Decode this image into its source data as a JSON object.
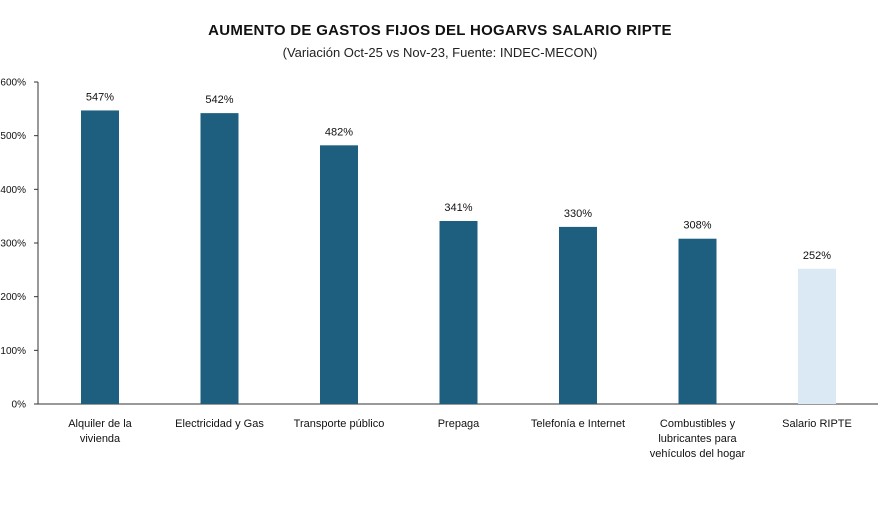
{
  "chart_data": {
    "type": "bar",
    "title": "AUMENTO DE GASTOS FIJOS DEL HOGARVS SALARIO RIPTE",
    "subtitle": "(Variación Oct-25 vs Nov-23, Fuente: INDEC-MECON)",
    "categories": [
      [
        "Alquiler de la",
        "vivienda"
      ],
      [
        "Electricidad y Gas"
      ],
      [
        "Transporte público"
      ],
      [
        "Prepaga"
      ],
      [
        "Telefonía e Internet"
      ],
      [
        "Combustibles y",
        "lubricantes para",
        "vehículos del hogar"
      ],
      [
        "Salario RIPTE"
      ]
    ],
    "values": [
      547,
      542,
      482,
      341,
      330,
      308,
      252
    ],
    "data_labels": [
      "547%",
      "542%",
      "482%",
      "341%",
      "330%",
      "308%",
      "252%"
    ],
    "colors": [
      "#1e5f80",
      "#1e5f80",
      "#1e5f80",
      "#1e5f80",
      "#1e5f80",
      "#1e5f80",
      "#dbe9f5"
    ],
    "ylim": [
      0,
      600
    ],
    "yticks": [
      0,
      100,
      200,
      300,
      400,
      500,
      600
    ],
    "ytick_labels": [
      "0%",
      "100%",
      "200%",
      "300%",
      "400%",
      "500%",
      "600%"
    ],
    "grid": false,
    "legend": "none"
  }
}
